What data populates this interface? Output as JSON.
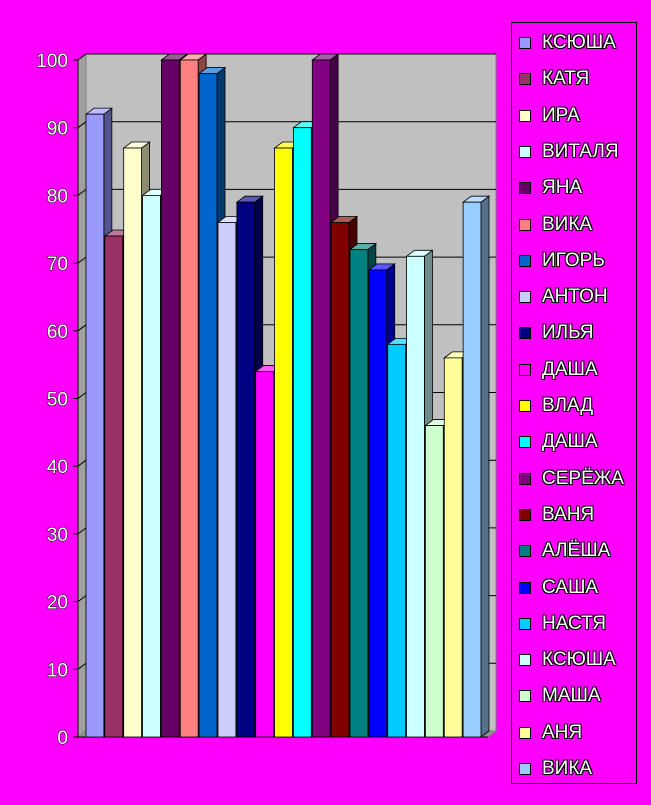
{
  "chart_data": {
    "type": "bar",
    "title": "",
    "xlabel": "",
    "ylabel": "",
    "ylim": [
      0,
      100
    ],
    "yticks": [
      0,
      10,
      20,
      30,
      40,
      50,
      60,
      70,
      80,
      90,
      100
    ],
    "grid": true,
    "legend_position": "right",
    "plot_background": "#C0C0C0",
    "page_background": "#FF00FF",
    "series": [
      {
        "name": "КСЮША",
        "value": 92,
        "color": "#9999FF"
      },
      {
        "name": "КАТЯ",
        "value": 74,
        "color": "#993366"
      },
      {
        "name": "ИРА",
        "value": 87,
        "color": "#FFFFCC"
      },
      {
        "name": "ВИТАЛЯ",
        "value": 80,
        "color": "#CCFFFF"
      },
      {
        "name": "ЯНА",
        "value": 100,
        "color": "#660066"
      },
      {
        "name": "ВИКА",
        "value": 100,
        "color": "#FF8080"
      },
      {
        "name": "ИГОРЬ",
        "value": 98,
        "color": "#0066CC"
      },
      {
        "name": "АНТОН",
        "value": 76,
        "color": "#CCCCFF"
      },
      {
        "name": "ИЛЬЯ",
        "value": 79,
        "color": "#000080"
      },
      {
        "name": "ДАША",
        "value": 54,
        "color": "#FF00FF"
      },
      {
        "name": "ВЛАД",
        "value": 87,
        "color": "#FFFF00"
      },
      {
        "name": "ДАША",
        "value": 90,
        "color": "#00FFFF"
      },
      {
        "name": "СЕРЁЖА",
        "value": 100,
        "color": "#800080"
      },
      {
        "name": "ВАНЯ",
        "value": 76,
        "color": "#800000"
      },
      {
        "name": "АЛЁША",
        "value": 72,
        "color": "#008080"
      },
      {
        "name": "САША",
        "value": 69,
        "color": "#0000FF"
      },
      {
        "name": "НАСТЯ",
        "value": 58,
        "color": "#00CCFF"
      },
      {
        "name": "КСЮША",
        "value": 71,
        "color": "#CCFFFF"
      },
      {
        "name": "МАША",
        "value": 46,
        "color": "#CCFFCC"
      },
      {
        "name": "АНЯ",
        "value": 56,
        "color": "#FFFF99"
      },
      {
        "name": "ВИКА",
        "value": 79,
        "color": "#99CCFF"
      }
    ]
  }
}
